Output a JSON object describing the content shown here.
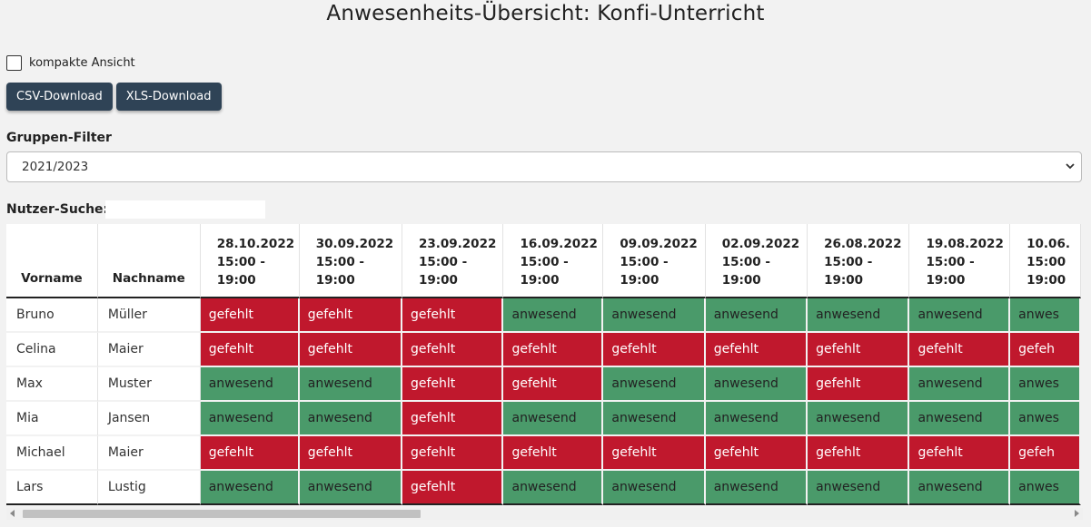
{
  "page": {
    "title": "Anwesenheits-Übersicht: Konfi-Unterricht"
  },
  "options": {
    "compact_label": "kompakte Ansicht",
    "compact_checked": false
  },
  "downloads": {
    "csv_label": "CSV-Download",
    "xls_label": "XLS-Download"
  },
  "filter": {
    "label": "Gruppen-Filter",
    "selected": "2021/2023"
  },
  "search": {
    "label": "Nutzer-Suche:",
    "value": ""
  },
  "table": {
    "headers": {
      "firstname": "Vorname",
      "lastname": "Nachname"
    },
    "dates": [
      {
        "date": "28.10.2022",
        "time_from": "15:00 -",
        "time_to": "19:00"
      },
      {
        "date": "30.09.2022",
        "time_from": "15:00 -",
        "time_to": "19:00"
      },
      {
        "date": "23.09.2022",
        "time_from": "15:00 -",
        "time_to": "19:00"
      },
      {
        "date": "16.09.2022",
        "time_from": "15:00 -",
        "time_to": "19:00"
      },
      {
        "date": "09.09.2022",
        "time_from": "15:00 -",
        "time_to": "19:00"
      },
      {
        "date": "02.09.2022",
        "time_from": "15:00 -",
        "time_to": "19:00"
      },
      {
        "date": "26.08.2022",
        "time_from": "15:00 -",
        "time_to": "19:00"
      },
      {
        "date": "19.08.2022",
        "time_from": "15:00 -",
        "time_to": "19:00"
      },
      {
        "date": "10.06.",
        "time_from": "15:00",
        "time_to": "19:00"
      }
    ],
    "rows": [
      {
        "firstname": "Bruno",
        "lastname": "Müller",
        "statuses": [
          "gefehlt",
          "gefehlt",
          "gefehlt",
          "anwesend",
          "anwesend",
          "anwesend",
          "anwesend",
          "anwesend",
          "anwes"
        ]
      },
      {
        "firstname": "Celina",
        "lastname": "Maier",
        "statuses": [
          "gefehlt",
          "gefehlt",
          "gefehlt",
          "gefehlt",
          "gefehlt",
          "gefehlt",
          "gefehlt",
          "gefehlt",
          "gefeh"
        ]
      },
      {
        "firstname": "Max",
        "lastname": "Muster",
        "statuses": [
          "anwesend",
          "anwesend",
          "gefehlt",
          "gefehlt",
          "anwesend",
          "anwesend",
          "gefehlt",
          "anwesend",
          "anwes"
        ]
      },
      {
        "firstname": "Mia",
        "lastname": "Jansen",
        "statuses": [
          "anwesend",
          "anwesend",
          "gefehlt",
          "anwesend",
          "anwesend",
          "anwesend",
          "anwesend",
          "anwesend",
          "anwes"
        ]
      },
      {
        "firstname": "Michael",
        "lastname": "Maier",
        "statuses": [
          "gefehlt",
          "gefehlt",
          "gefehlt",
          "gefehlt",
          "gefehlt",
          "gefehlt",
          "gefehlt",
          "gefehlt",
          "gefeh"
        ]
      },
      {
        "firstname": "Lars",
        "lastname": "Lustig",
        "statuses": [
          "anwesend",
          "anwesend",
          "gefehlt",
          "anwesend",
          "anwesend",
          "anwesend",
          "anwesend",
          "anwesend",
          "anwes"
        ]
      }
    ]
  },
  "colors": {
    "gefehlt": "#c0182d",
    "anwesend": "#4a9a6a",
    "button": "#2f4356"
  }
}
